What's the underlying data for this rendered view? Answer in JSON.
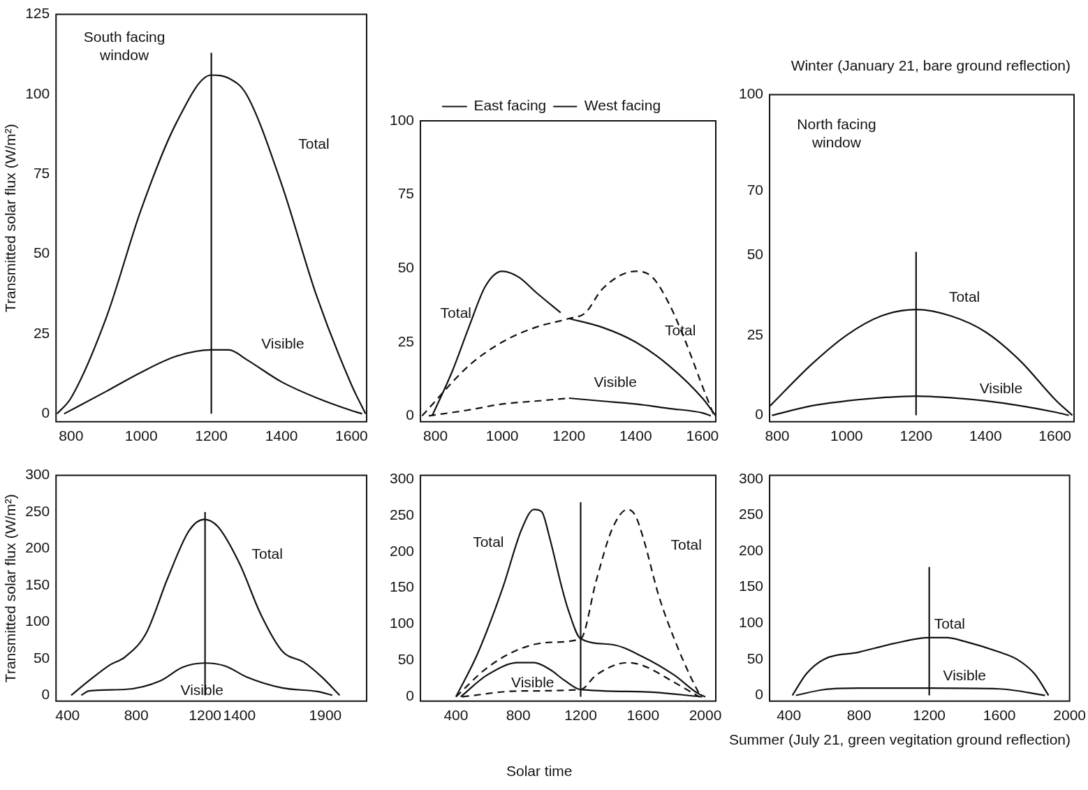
{
  "chart_data": [
    {
      "type": "line",
      "ylabel": "Transmitted solar flux (W/m²)",
      "marker": "none",
      "legend": false,
      "xlim": [
        757,
        1643
      ],
      "xticks": [
        800,
        1000,
        1200,
        1400,
        1600
      ],
      "ylim": [
        -2.5,
        125
      ],
      "yticks": [
        0,
        25,
        50,
        75,
        100,
        125
      ],
      "annotations": [
        "South facing window",
        "Total",
        "Visible"
      ],
      "series": [
        {
          "color": "#111111",
          "x": [
            760,
            800,
            900,
            1000,
            1100,
            1200,
            1250,
            1300,
            1400,
            1500,
            1600,
            1640
          ],
          "values": [
            0,
            5,
            30,
            64,
            91,
            106,
            105,
            100,
            72,
            37,
            9,
            0
          ]
        },
        {
          "color": "#111111",
          "x": [
            780,
            900,
            1000,
            1100,
            1200,
            1250,
            1300,
            1400,
            1500,
            1600,
            1630
          ],
          "values": [
            0,
            7,
            13,
            18,
            20,
            20,
            17,
            10,
            5,
            1,
            0
          ]
        },
        {
          "color": "#111111",
          "x": [
            1200,
            1200
          ],
          "values": [
            0,
            113
          ]
        }
      ]
    },
    {
      "type": "line",
      "marker": "none",
      "legend": "top",
      "xlim": [
        755,
        1640
      ],
      "xticks": [
        800,
        1000,
        1200,
        1400,
        1600
      ],
      "ylim": [
        -2,
        100
      ],
      "yticks": [
        0,
        25,
        50,
        75,
        100
      ],
      "annotations": [
        "Total",
        "Total",
        "Visible"
      ],
      "series": [
        {
          "name": "East facing",
          "color": "#111111",
          "x": [
            790,
            850,
            900,
            950,
            1000,
            1050,
            1100,
            1175
          ],
          "values": [
            0,
            15,
            30,
            44,
            49,
            47,
            42,
            35
          ]
        },
        {
          "name": "West facing",
          "color": "#111111",
          "line_style": "dashed",
          "x": [
            760,
            900,
            1000,
            1100,
            1200,
            1250,
            1300,
            1400,
            1450,
            1500,
            1550,
            1600,
            1635
          ],
          "values": [
            0,
            17,
            25,
            30,
            33,
            35,
            43,
            49,
            47,
            38,
            25,
            10,
            0
          ]
        },
        {
          "color": "#111111",
          "x": [
            1200,
            1300,
            1400,
            1500,
            1600,
            1640
          ],
          "values": [
            33,
            30,
            25,
            17,
            6,
            0
          ]
        },
        {
          "color": "#111111",
          "line_style": "dashed",
          "x": [
            780,
            900,
            1000,
            1100,
            1200
          ],
          "values": [
            0,
            2,
            4,
            5,
            6
          ]
        },
        {
          "color": "#111111",
          "x": [
            1200,
            1300,
            1400,
            1500,
            1600,
            1625
          ],
          "values": [
            6,
            5,
            4,
            2.5,
            1,
            0
          ]
        }
      ]
    },
    {
      "type": "line",
      "marker": "none",
      "legend": false,
      "title": "Winter (January 21, bare ground reflection)",
      "xlim": [
        778,
        1655
      ],
      "xticks": [
        800,
        1000,
        1200,
        1400,
        1600
      ],
      "ylim": [
        -2,
        100
      ],
      "yticks": [
        0,
        25,
        50,
        70,
        100
      ],
      "annotations": [
        "North facing window",
        "Total",
        "Visible"
      ],
      "series": [
        {
          "color": "#111111",
          "x": [
            780,
            900,
            1000,
            1100,
            1200,
            1300,
            1400,
            1500,
            1600,
            1650
          ],
          "values": [
            3,
            16,
            25,
            31,
            33,
            31,
            26,
            17,
            5,
            0
          ]
        },
        {
          "color": "#111111",
          "x": [
            785,
            900,
            1000,
            1100,
            1200,
            1300,
            1400,
            1500,
            1600,
            1640
          ],
          "values": [
            0,
            3,
            4.5,
            5.5,
            6,
            5.5,
            4.5,
            3,
            1,
            0
          ]
        },
        {
          "color": "#111111",
          "x": [
            1200,
            1200
          ],
          "values": [
            0,
            51
          ]
        }
      ]
    },
    {
      "type": "line",
      "ylabel": "Transmitted solar flux (W/m²)",
      "marker": "none",
      "legend": false,
      "xlim": [
        333,
        2140
      ],
      "xticks": [
        400,
        800,
        1200,
        1400,
        1900
      ],
      "ylim": [
        -8,
        300
      ],
      "yticks": [
        0,
        50,
        100,
        150,
        200,
        250,
        300
      ],
      "annotations": [
        "Total",
        "Visible"
      ],
      "series": [
        {
          "color": "#111111",
          "x": [
            421,
            525,
            650,
            733,
            858,
            983,
            1108,
            1196,
            1275,
            1400,
            1525,
            1650,
            1775,
            1879,
            1983
          ],
          "values": [
            0,
            20,
            42,
            52,
            85,
            160,
            225,
            240,
            230,
            180,
            110,
            60,
            45,
            25,
            0
          ]
        },
        {
          "color": "#111111",
          "x": [
            480,
            525,
            733,
            942,
            1067,
            1196,
            1317,
            1442,
            1650,
            1858,
            1940
          ],
          "values": [
            0,
            6,
            8,
            20,
            38,
            44,
            40,
            25,
            10,
            5,
            0
          ]
        },
        {
          "color": "#111111",
          "x": [
            1200,
            1200
          ],
          "values": [
            0,
            250
          ]
        }
      ]
    },
    {
      "type": "line",
      "marker": "none",
      "legend": false,
      "xlabel": "Solar time",
      "xlim": [
        172,
        2067
      ],
      "xticks": [
        400,
        800,
        1200,
        1600,
        2000
      ],
      "ylim": [
        -6,
        305
      ],
      "yticks": [
        0,
        50,
        100,
        150,
        200,
        250,
        300
      ],
      "annotations": [
        "Total",
        "Total",
        "Visible"
      ],
      "series": [
        {
          "color": "#111111",
          "x": [
            400,
            540,
            700,
            820,
            900,
            950,
            1000,
            1080,
            1120,
            1200,
            1400,
            1600,
            1800,
            1950,
            2000
          ],
          "values": [
            0,
            60,
            150,
            230,
            258,
            255,
            220,
            150,
            120,
            80,
            72,
            55,
            30,
            5,
            0
          ]
        },
        {
          "color": "#111111",
          "line_style": "dashed",
          "x": [
            400,
            600,
            800,
            1000,
            1200,
            1300,
            1400,
            1500,
            1550,
            1600,
            1700,
            1800,
            1900,
            1970
          ],
          "values": [
            0,
            40,
            65,
            75,
            80,
            160,
            230,
            258,
            250,
            220,
            140,
            80,
            30,
            0
          ]
        },
        {
          "color": "#111111",
          "x": [
            430,
            600,
            800,
            900,
            1000,
            1100,
            1200,
            1600,
            1980
          ],
          "values": [
            0,
            30,
            47,
            47,
            38,
            22,
            10,
            7,
            0
          ]
        },
        {
          "color": "#111111",
          "line_style": "dashed",
          "x": [
            440,
            800,
            1200,
            1300,
            1500,
            1600,
            1800,
            1960
          ],
          "values": [
            0,
            8,
            10,
            30,
            47,
            43,
            20,
            0
          ]
        },
        {
          "color": "#111111",
          "x": [
            1200,
            1200
          ],
          "values": [
            0,
            268
          ]
        }
      ]
    },
    {
      "type": "line",
      "marker": "none",
      "legend": false,
      "title": "Summer (July 21, green vegitation ground reflection)",
      "xlim": [
        290,
        2000
      ],
      "xticks": [
        400,
        800,
        1200,
        1600,
        2000
      ],
      "ylim": [
        -8,
        305
      ],
      "yticks": [
        0,
        50,
        100,
        150,
        200,
        250,
        300
      ],
      "annotations": [
        "Total",
        "Visible"
      ],
      "series": [
        {
          "color": "#111111",
          "x": [
            420,
            500,
            600,
            800,
            1000,
            1200,
            1300,
            1400,
            1600,
            1700,
            1800,
            1880
          ],
          "values": [
            0,
            30,
            50,
            60,
            72,
            80,
            80,
            75,
            60,
            50,
            30,
            0
          ]
        },
        {
          "color": "#111111",
          "x": [
            440,
            600,
            800,
            1200,
            1600,
            1860
          ],
          "values": [
            0,
            8,
            10,
            10,
            9,
            0
          ]
        },
        {
          "color": "#111111",
          "x": [
            1200,
            1200
          ],
          "values": [
            0,
            178
          ]
        }
      ]
    }
  ]
}
